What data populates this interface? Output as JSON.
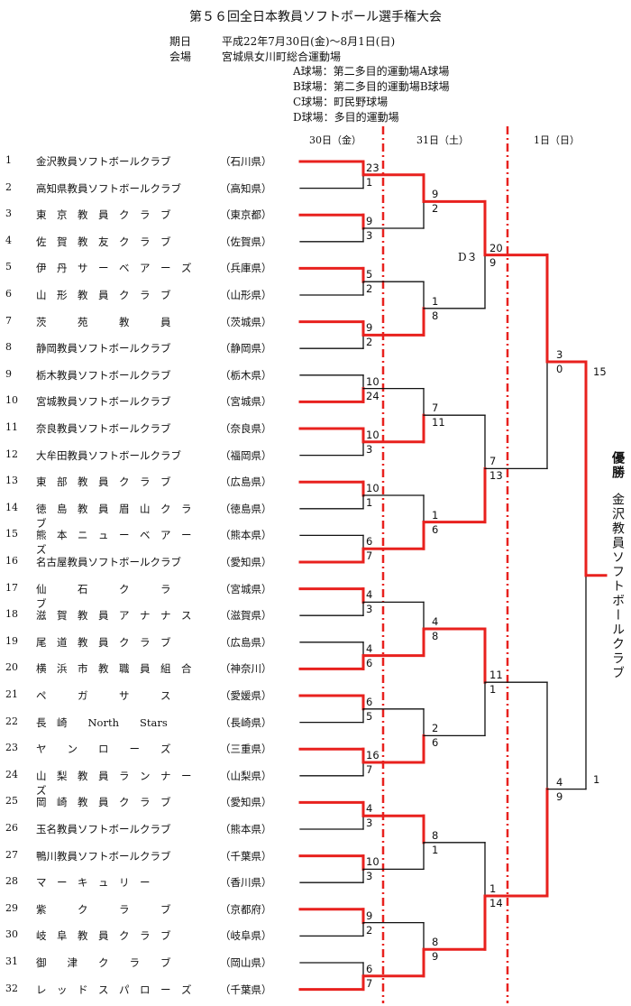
{
  "title": "第５６回全日本教員ソフトボール選手権大会",
  "info": {
    "date_label": "期日",
    "date_value": "平成22年7月30日(金)～8月1日(日)",
    "venue_label": "会場",
    "venue_value": "宮城県女川町総合運動場",
    "fields": [
      "A球場：第二多目的運動場A球場",
      "B球場：第二多目的運動場B球場",
      "C球場：町民野球場",
      "D球場：多目的運動場"
    ]
  },
  "days": [
    "30日（金）",
    "31日（土）",
    "1日（日）"
  ],
  "champion_label": "優勝",
  "champion_team": "金沢教員ソフトボールクラブ",
  "final_venue": "D３",
  "teams": [
    {
      "num": "1",
      "name": "金沢教員ソフトボールクラブ",
      "pref": "（石川県）"
    },
    {
      "num": "2",
      "name": "高知県教員ソフトボールクラブ",
      "pref": "（高知県）"
    },
    {
      "num": "3",
      "name": "東　京　教　員　ク　ラ　ブ",
      "pref": "（東京都）"
    },
    {
      "num": "4",
      "name": "佐　賀　教　友　ク　ラ　ブ",
      "pref": "（佐賀県）"
    },
    {
      "num": "5",
      "name": "伊　丹　サ　ー　ベ　ア　ー　ズ",
      "pref": "（兵庫県）"
    },
    {
      "num": "6",
      "name": "山　形　教　員　ク　ラ　ブ",
      "pref": "（山形県）"
    },
    {
      "num": "7",
      "name": "茨　　　苑　　　教　　　員",
      "pref": "（茨城県）"
    },
    {
      "num": "8",
      "name": "静岡教員ソフトボールクラブ",
      "pref": "（静岡県）"
    },
    {
      "num": "9",
      "name": "栃木教員ソフトボールクラブ",
      "pref": "（栃木県）"
    },
    {
      "num": "10",
      "name": "宮城教員ソフトボールクラブ",
      "pref": "（宮城県）"
    },
    {
      "num": "11",
      "name": "奈良教員ソフトボールクラブ",
      "pref": "（奈良県）"
    },
    {
      "num": "12",
      "name": "大牟田教員ソフトボールクラブ",
      "pref": "（福岡県）"
    },
    {
      "num": "13",
      "name": "東　部　教　員　ク　ラ　ブ",
      "pref": "（広島県）"
    },
    {
      "num": "14",
      "name": "徳　島　教　員　眉　山　ク　ラ　ブ",
      "pref": "（徳島県）"
    },
    {
      "num": "15",
      "name": "熊　本　ニ　ュ　ー　ベ　ア　ー　ズ",
      "pref": "（熊本県）"
    },
    {
      "num": "16",
      "name": "名古屋教員ソフトボールクラブ",
      "pref": "（愛知県）"
    },
    {
      "num": "17",
      "name": "仙　　　石　　　ク　　　ラ　　　ブ",
      "pref": "（宮城県）"
    },
    {
      "num": "18",
      "name": "滋　賀　教　員　ア　ナ　ナ　ス",
      "pref": "（滋賀県）"
    },
    {
      "num": "19",
      "name": "尾　道　教　員　ク　ラ　ブ",
      "pref": "（広島県）"
    },
    {
      "num": "20",
      "name": "横　浜　市　教　職　員　組　合",
      "pref": "（神奈川）"
    },
    {
      "num": "21",
      "name": "ペ　　　ガ　　　サ　　　ス",
      "pref": "（愛媛県）"
    },
    {
      "num": "22",
      "name": "長　崎　　North　　Stars",
      "pref": "（長崎県）"
    },
    {
      "num": "23",
      "name": "ヤ　　ン　　ロ　　ー　　ズ",
      "pref": "（三重県）"
    },
    {
      "num": "24",
      "name": "山　梨　教　員　ラ　ン　ナ　ー　ズ",
      "pref": "（山梨県）"
    },
    {
      "num": "25",
      "name": "岡　崎　教　員　ク　ラ　ブ",
      "pref": "（愛知県）"
    },
    {
      "num": "26",
      "name": "玉名教員ソフトボールクラブ",
      "pref": "（熊本県）"
    },
    {
      "num": "27",
      "name": "鴨川教員ソフトボールクラブ",
      "pref": "（千葉県）"
    },
    {
      "num": "28",
      "name": "マ　ー　キ　ュ　リ　ー",
      "pref": "（香川県）"
    },
    {
      "num": "29",
      "name": "紫　　　ク　　　ラ　　　ブ",
      "pref": "（京都府）"
    },
    {
      "num": "30",
      "name": "岐　阜　教　員　ク　ラ　ブ",
      "pref": "（岐阜県）"
    },
    {
      "num": "31",
      "name": "御　　津　　ク　　ラ　　ブ",
      "pref": "（岡山県）"
    },
    {
      "num": "32",
      "name": "レ　ッ　ド　ス　パ　ロ　ー　ズ",
      "pref": "（千葉県）"
    }
  ],
  "results": {
    "r1": [
      [
        "23",
        "1"
      ],
      [
        "9",
        "3"
      ],
      [
        "5",
        "2"
      ],
      [
        "9",
        "2"
      ],
      [
        "10",
        "24"
      ],
      [
        "10",
        "3"
      ],
      [
        "10",
        "1"
      ],
      [
        "6",
        "7"
      ],
      [
        "4",
        "3"
      ],
      [
        "4",
        "6"
      ],
      [
        "6",
        "5"
      ],
      [
        "16",
        "7"
      ],
      [
        "4",
        "3"
      ],
      [
        "10",
        "3"
      ],
      [
        "9",
        "2"
      ],
      [
        "6",
        "7"
      ]
    ],
    "r2": [
      [
        "9",
        "2"
      ],
      [
        "1",
        "8"
      ],
      [
        "7",
        "11"
      ],
      [
        "1",
        "6"
      ],
      [
        "4",
        "8"
      ],
      [
        "2",
        "6"
      ],
      [
        "8",
        "1"
      ],
      [
        "8",
        "9"
      ]
    ],
    "r3": [
      [
        "20",
        "9"
      ],
      [
        "7",
        "13"
      ],
      [
        "11",
        "1"
      ],
      [
        "1",
        "14"
      ]
    ],
    "qf": [
      [
        "3",
        "0"
      ],
      [
        "4",
        "9"
      ]
    ],
    "final": [
      "15",
      "1"
    ]
  },
  "colors": {
    "winner": "#e8211e",
    "loser": "#111111",
    "divider": "#e8211e"
  }
}
